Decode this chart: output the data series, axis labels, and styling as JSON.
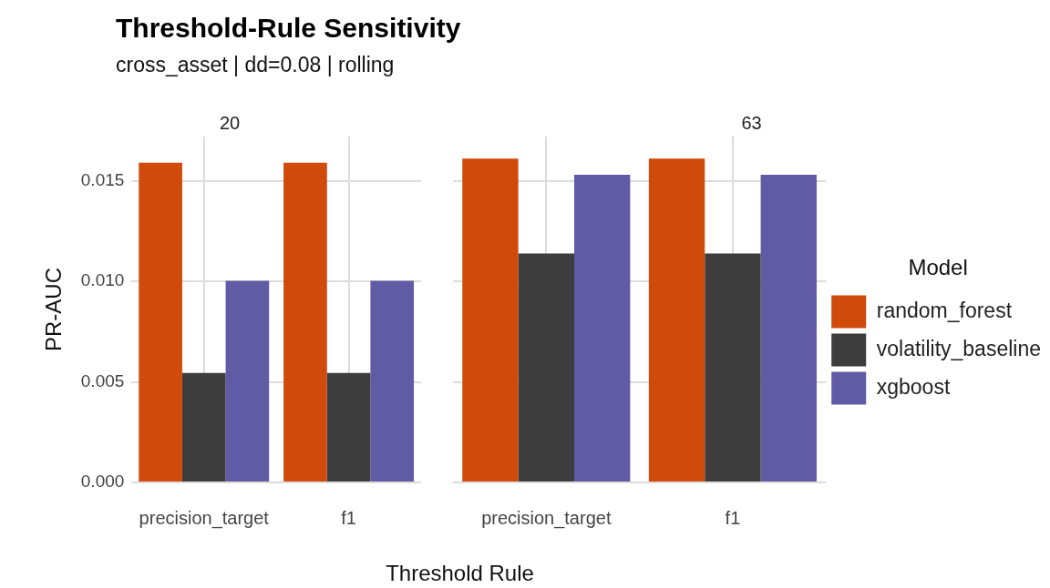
{
  "chart_data": [
    {
      "type": "other",
      "title": "Threshold-Rule Sensitivity",
      "subtitle": "cross_asset | dd=0.08 | rolling"
    },
    {
      "type": "bar",
      "title": "20",
      "xlabel": "Threshold Rule",
      "ylabel": "PR-AUC",
      "categories": [
        "precision_target",
        "f1"
      ],
      "series": [
        {
          "color": "#cf4a0b",
          "values": [
            0.0159,
            0.0159
          ]
        },
        {
          "color": "#3d3d3d",
          "values": [
            0.00544,
            0.00544
          ]
        },
        {
          "color": "#605ba4",
          "values": [
            0.01003,
            0.01003
          ]
        }
      ],
      "ylim": [
        0,
        0.0172
      ],
      "yticks": [
        {
          "value": 0,
          "label": "0.000"
        },
        0.005,
        {
          "value": 0.01,
          "label": "0.010"
        },
        0.015
      ],
      "grid": true,
      "legend": false
    },
    {
      "type": "bar",
      "title": "63",
      "categories": [
        "precision_target",
        "f1"
      ],
      "series": [
        {
          "name": "random_forest",
          "color": "#cf4a0b",
          "values": [
            0.0161,
            0.0161
          ]
        },
        {
          "name": "volatility_baseline",
          "color": "#3d3d3d",
          "values": [
            0.01138,
            0.01138
          ]
        },
        {
          "name": "xgboost",
          "color": "#605ba4",
          "values": [
            0.0153,
            0.0153
          ]
        }
      ],
      "ylim": [
        0,
        0.0172
      ],
      "yticks": [
        0,
        0.005,
        0.01,
        0.015
      ],
      "grid": true,
      "legend": "right",
      "legend_title": "Model",
      "tick_labels": "x"
    }
  ]
}
